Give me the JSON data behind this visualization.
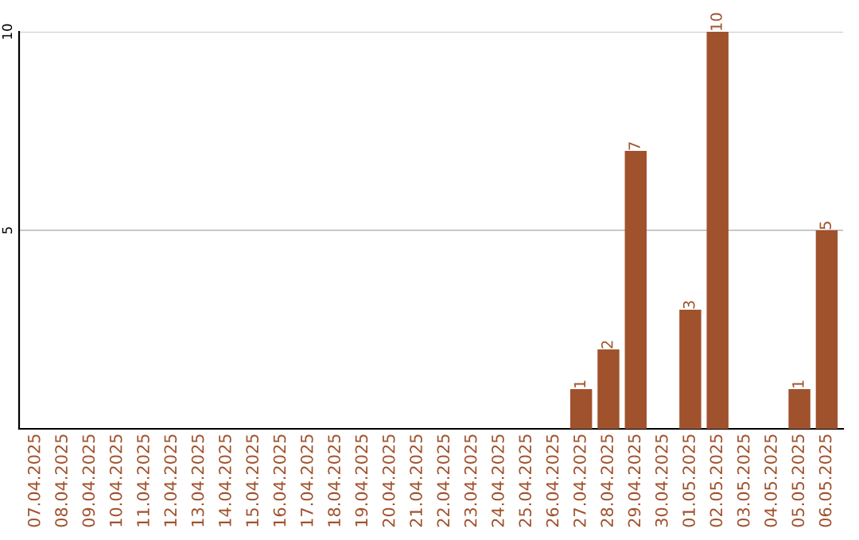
{
  "chart_data": {
    "type": "bar",
    "categories": [
      "07.04.2025",
      "08.04.2025",
      "09.04.2025",
      "10.04.2025",
      "11.04.2025",
      "12.04.2025",
      "13.04.2025",
      "14.04.2025",
      "15.04.2025",
      "16.04.2025",
      "17.04.2025",
      "18.04.2025",
      "19.04.2025",
      "20.04.2025",
      "21.04.2025",
      "22.04.2025",
      "23.04.2025",
      "24.04.2025",
      "25.04.2025",
      "26.04.2025",
      "27.04.2025",
      "28.04.2025",
      "29.04.2025",
      "30.04.2025",
      "01.05.2025",
      "02.05.2025",
      "03.05.2025",
      "04.05.2025",
      "05.05.2025",
      "06.05.2025"
    ],
    "values": [
      0,
      0,
      0,
      0,
      0,
      0,
      0,
      0,
      0,
      0,
      0,
      0,
      0,
      0,
      0,
      0,
      0,
      0,
      0,
      0,
      1,
      2,
      7,
      0,
      3,
      10,
      0,
      0,
      1,
      5
    ],
    "value_labels": [
      null,
      null,
      null,
      null,
      null,
      null,
      null,
      null,
      null,
      null,
      null,
      null,
      null,
      null,
      null,
      null,
      null,
      null,
      null,
      null,
      "1",
      "2",
      "7",
      null,
      "3",
      "10",
      null,
      null,
      "1",
      "5"
    ],
    "color": "#a0522d",
    "ylim": [
      0,
      10
    ],
    "yticks": [
      5,
      10
    ],
    "grid": "y"
  }
}
